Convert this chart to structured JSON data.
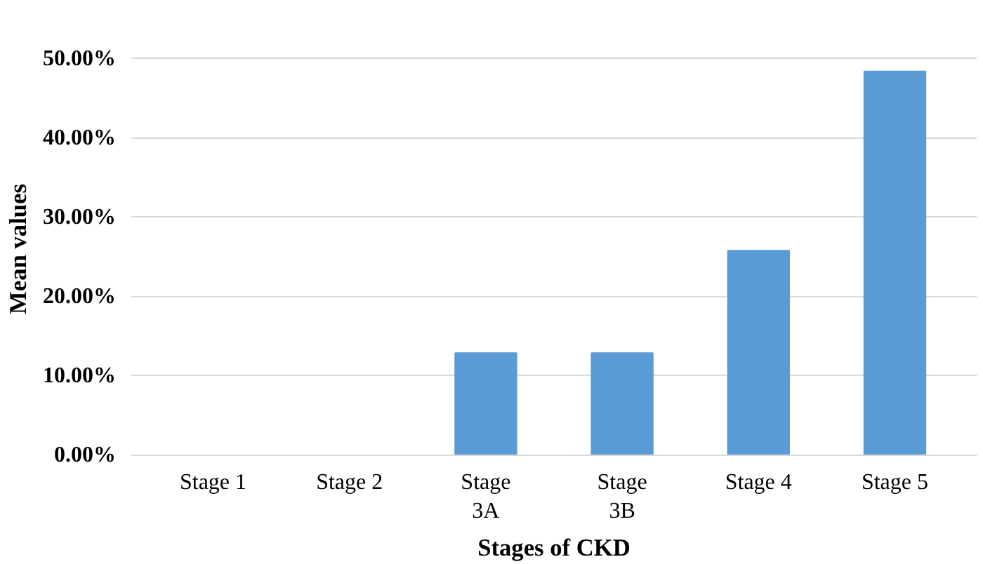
{
  "chart_data": {
    "type": "bar",
    "xlabel": "Stages of CKD",
    "ylabel": "Mean values",
    "categories": [
      "Stage 1",
      "Stage 2",
      "Stage\n3A",
      "Stage\n3B",
      "Stage 4",
      "Stage 5"
    ],
    "values": [
      0,
      0,
      12.9,
      12.9,
      25.8,
      48.4
    ],
    "color": "#5b9bd5",
    "ylim": [
      0,
      50
    ],
    "yticks": [
      {
        "value": 0,
        "label": "0.00%"
      },
      {
        "value": 10,
        "label": "10.00%"
      },
      {
        "value": 20,
        "label": "20.00%"
      },
      {
        "value": 30,
        "label": "30.00%"
      },
      {
        "value": 40,
        "label": "40.00%"
      },
      {
        "value": 50,
        "label": "50.00%"
      }
    ],
    "grid": "y"
  }
}
